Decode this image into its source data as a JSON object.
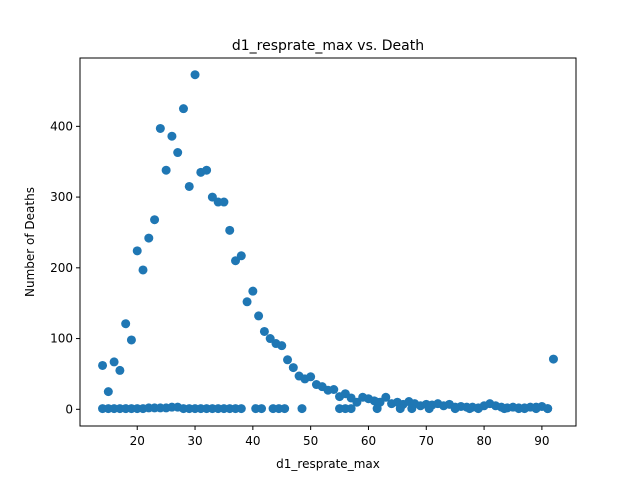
{
  "chart_data": {
    "type": "scatter",
    "title": "d1_resprate_max vs. Death",
    "xlabel": "d1_resprate_max",
    "ylabel": "Number of Deaths",
    "xlim": [
      10.1,
      95.9
    ],
    "ylim": [
      -23.6,
      496.6
    ],
    "xticks": [
      20,
      30,
      40,
      50,
      60,
      70,
      80,
      90
    ],
    "yticks": [
      0,
      100,
      200,
      300,
      400
    ],
    "grid": false,
    "legend": "none",
    "color": "#1f77b4",
    "series": [
      {
        "points": [
          [
            14,
            62
          ],
          [
            15,
            25
          ],
          [
            16,
            67
          ],
          [
            17,
            55
          ],
          [
            18,
            121
          ],
          [
            19,
            98
          ],
          [
            20,
            224
          ],
          [
            21,
            197
          ],
          [
            22,
            242
          ],
          [
            23,
            268
          ],
          [
            24,
            397
          ],
          [
            25,
            338
          ],
          [
            26,
            386
          ],
          [
            27,
            363
          ],
          [
            28,
            425
          ],
          [
            29,
            315
          ],
          [
            30,
            473
          ],
          [
            31,
            335
          ],
          [
            32,
            338
          ],
          [
            33,
            300
          ],
          [
            34,
            293
          ],
          [
            35,
            293
          ],
          [
            36,
            253
          ],
          [
            37,
            210
          ],
          [
            38,
            217
          ],
          [
            39,
            152
          ],
          [
            40,
            167
          ],
          [
            41,
            132
          ],
          [
            42,
            110
          ],
          [
            43,
            100
          ],
          [
            44,
            93
          ],
          [
            45,
            90
          ],
          [
            46,
            70
          ],
          [
            47,
            59
          ],
          [
            48,
            47
          ],
          [
            49,
            43
          ],
          [
            50,
            46
          ],
          [
            51,
            35
          ],
          [
            52,
            32
          ],
          [
            53,
            27
          ],
          [
            54,
            28
          ],
          [
            55,
            18
          ],
          [
            56,
            22
          ],
          [
            57,
            16
          ],
          [
            58,
            10
          ],
          [
            59,
            17
          ],
          [
            60,
            15
          ],
          [
            61,
            12
          ],
          [
            61.5,
            10
          ],
          [
            62,
            10
          ],
          [
            63,
            17
          ],
          [
            64,
            8
          ],
          [
            65,
            10
          ],
          [
            66,
            7
          ],
          [
            67,
            11
          ],
          [
            68,
            8
          ],
          [
            69,
            5
          ],
          [
            70,
            7
          ],
          [
            71,
            6
          ],
          [
            72,
            8
          ],
          [
            73,
            5
          ],
          [
            74,
            7
          ],
          [
            75,
            3
          ],
          [
            76,
            4
          ],
          [
            77,
            3
          ],
          [
            78,
            3
          ],
          [
            79,
            2
          ],
          [
            80,
            5
          ],
          [
            81,
            8
          ],
          [
            82,
            5
          ],
          [
            83,
            3
          ],
          [
            84,
            2
          ],
          [
            85,
            3
          ],
          [
            86,
            2
          ],
          [
            87,
            2
          ],
          [
            88,
            3
          ],
          [
            89,
            3
          ],
          [
            90,
            4
          ],
          [
            91,
            1
          ],
          [
            92,
            71
          ],
          [
            14,
            1
          ],
          [
            15,
            1
          ],
          [
            16,
            1
          ],
          [
            17,
            1
          ],
          [
            18,
            1
          ],
          [
            19,
            1
          ],
          [
            20,
            1
          ],
          [
            21,
            1
          ],
          [
            22,
            2
          ],
          [
            23,
            2
          ],
          [
            24,
            2
          ],
          [
            25,
            2
          ],
          [
            26,
            3
          ],
          [
            27,
            3
          ],
          [
            28,
            1
          ],
          [
            29,
            1
          ],
          [
            30,
            1
          ],
          [
            31,
            1
          ],
          [
            32,
            1
          ],
          [
            33,
            1
          ],
          [
            34,
            1
          ],
          [
            35,
            1
          ],
          [
            36,
            1
          ],
          [
            37,
            1
          ],
          [
            38,
            1
          ],
          [
            40.5,
            1
          ],
          [
            41.5,
            1
          ],
          [
            43.5,
            1
          ],
          [
            44.5,
            1
          ],
          [
            45.5,
            1
          ],
          [
            48.5,
            1
          ],
          [
            55,
            1
          ],
          [
            56,
            1
          ],
          [
            57,
            1
          ],
          [
            61.5,
            1
          ],
          [
            65.5,
            1
          ],
          [
            67.5,
            1
          ],
          [
            70.5,
            1
          ],
          [
            75,
            1
          ],
          [
            77.5,
            1
          ],
          [
            79,
            1
          ],
          [
            83.5,
            1
          ],
          [
            86,
            1
          ],
          [
            87,
            1
          ],
          [
            89,
            1
          ],
          [
            91,
            1
          ]
        ]
      }
    ]
  }
}
